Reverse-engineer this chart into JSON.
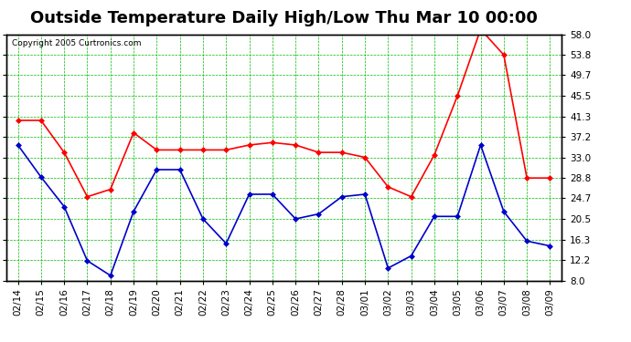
{
  "title": "Outside Temperature Daily High/Low Thu Mar 10 00:00",
  "copyright": "Copyright 2005 Curtronics.com",
  "x_labels": [
    "02/14",
    "02/15",
    "02/16",
    "02/17",
    "02/18",
    "02/19",
    "02/20",
    "02/21",
    "02/22",
    "02/23",
    "02/24",
    "02/25",
    "02/26",
    "02/27",
    "02/28",
    "03/01",
    "03/02",
    "03/03",
    "03/04",
    "03/05",
    "03/06",
    "03/07",
    "03/08",
    "03/09"
  ],
  "high_values": [
    40.5,
    40.5,
    34.0,
    25.0,
    26.5,
    38.0,
    34.5,
    34.5,
    34.5,
    34.5,
    35.5,
    36.0,
    35.5,
    34.0,
    34.0,
    33.0,
    27.0,
    25.0,
    33.5,
    45.5,
    59.0,
    53.8,
    28.8,
    28.8
  ],
  "low_values": [
    35.5,
    29.0,
    23.0,
    12.0,
    9.0,
    22.0,
    30.5,
    30.5,
    20.5,
    15.5,
    25.5,
    25.5,
    20.5,
    21.5,
    25.0,
    25.5,
    10.5,
    13.0,
    21.0,
    21.0,
    35.5,
    22.0,
    16.0,
    15.0
  ],
  "high_color": "#ff0000",
  "low_color": "#0000cc",
  "background_color": "#ffffff",
  "plot_bg_color": "#ffffff",
  "grid_color": "#00bb00",
  "y_ticks": [
    8.0,
    12.2,
    16.3,
    20.5,
    24.7,
    28.8,
    33.0,
    37.2,
    41.3,
    45.5,
    49.7,
    53.8,
    58.0
  ],
  "ylim": [
    8.0,
    58.0
  ],
  "title_fontsize": 13,
  "tick_fontsize": 7.5
}
